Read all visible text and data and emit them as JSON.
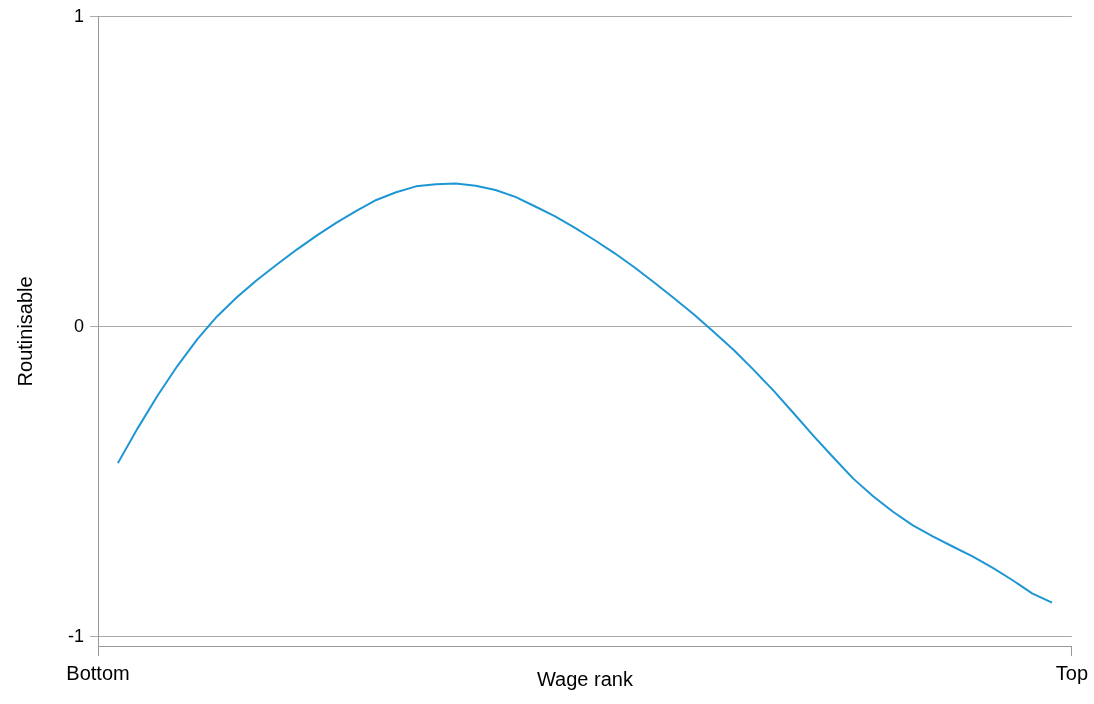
{
  "chart_data": {
    "type": "line",
    "xlabel": "Wage rank",
    "ylabel": "Routinisable",
    "categories": [
      "Bottom",
      null,
      null,
      null,
      null,
      null,
      null,
      null,
      null,
      null,
      null,
      null,
      null,
      null,
      null,
      null,
      null,
      null,
      null,
      null,
      null,
      null,
      null,
      null,
      null,
      null,
      null,
      null,
      null,
      null,
      null,
      null,
      null,
      null,
      null,
      null,
      null,
      null,
      null,
      null,
      null,
      null,
      null,
      null,
      null,
      null,
      null,
      null,
      null,
      "Top"
    ],
    "ylim": [
      -1.03,
      1
    ],
    "yticks": [
      -1,
      0,
      1
    ],
    "grid": "y",
    "legend": false,
    "marker": "none",
    "line_style": "solid",
    "series": [
      {
        "color": "#1f96d4",
        "values": [
          null,
          -0.44,
          -0.327,
          -0.222,
          -0.126,
          -0.04,
          0.034,
          0.096,
          0.151,
          0.201,
          0.249,
          0.294,
          0.336,
          0.374,
          0.409,
          0.434,
          0.453,
          0.46,
          0.462,
          0.455,
          0.441,
          0.419,
          0.388,
          0.356,
          0.319,
          0.279,
          0.237,
          0.191,
          0.142,
          0.091,
          0.039,
          -0.018,
          -0.076,
          -0.14,
          -0.207,
          -0.279,
          -0.352,
          -0.422,
          -0.49,
          -0.547,
          -0.597,
          -0.641,
          -0.676,
          -0.709,
          -0.741,
          -0.777,
          -0.817,
          -0.86,
          -0.89,
          null
        ]
      }
    ]
  }
}
